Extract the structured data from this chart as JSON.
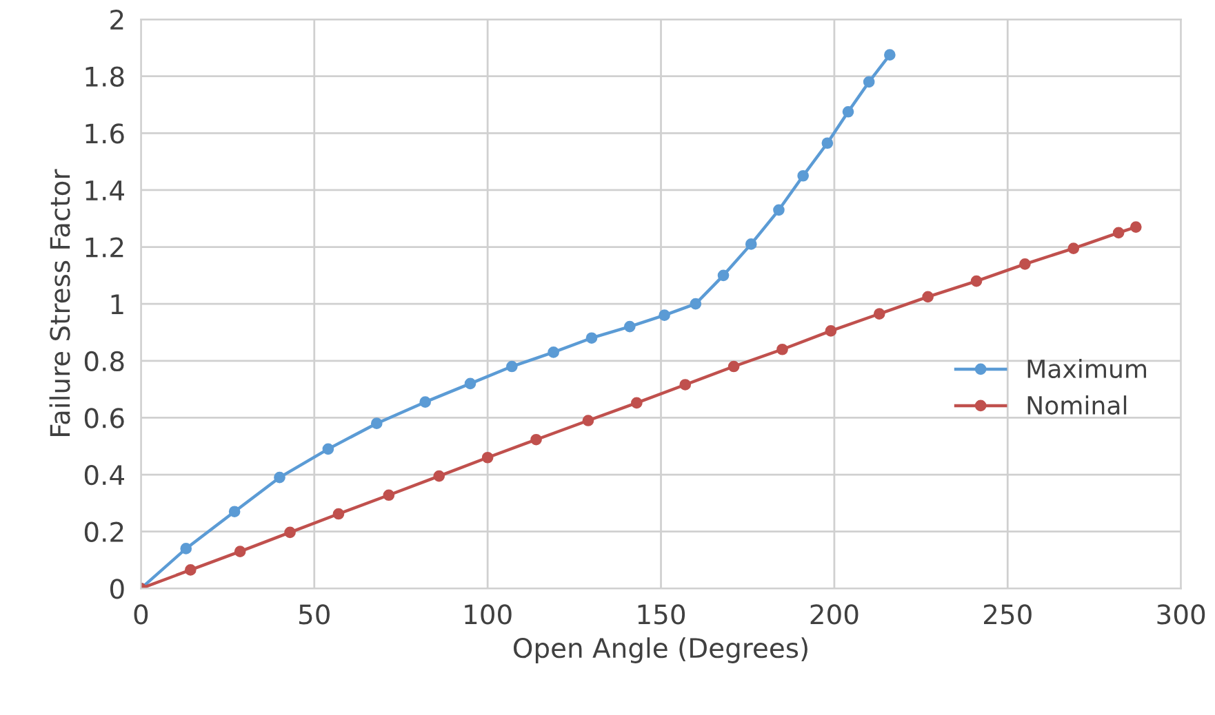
{
  "chart_data": {
    "type": "line",
    "xlabel": "Open Angle (Degrees)",
    "ylabel": "Failure Stress Factor",
    "xlim": [
      0,
      300
    ],
    "xticks": [
      0,
      50,
      100,
      150,
      200,
      250,
      300
    ],
    "ylim": [
      0,
      2
    ],
    "yticks": [
      0,
      0.2,
      0.4,
      0.6,
      0.8,
      1,
      1.2,
      1.4,
      1.6,
      1.8,
      2
    ],
    "grid": true,
    "legend": "right",
    "marker": "circle",
    "line_style": "solid",
    "series": [
      {
        "name": "Maximum",
        "color": "#5b9bd5",
        "x": [
          0,
          13,
          27,
          40,
          54,
          68,
          82,
          95,
          107,
          119,
          130,
          141,
          151,
          160,
          168,
          176,
          184,
          191,
          198,
          204,
          210,
          216
        ],
        "values": [
          0,
          0.14,
          0.27,
          0.39,
          0.49,
          0.58,
          0.655,
          0.72,
          0.78,
          0.83,
          0.88,
          0.92,
          0.96,
          1.0,
          1.1,
          1.21,
          1.33,
          1.45,
          1.565,
          1.675,
          1.78,
          1.875
        ]
      },
      {
        "name": "Nominal",
        "color": "#c0504d",
        "x": [
          0,
          14.3,
          28.6,
          43,
          57,
          71.5,
          86,
          100,
          114,
          129,
          143,
          157,
          171,
          185,
          199,
          213,
          227,
          241,
          255,
          269,
          282,
          287
        ],
        "values": [
          0,
          0.065,
          0.13,
          0.197,
          0.262,
          0.328,
          0.395,
          0.46,
          0.523,
          0.59,
          0.652,
          0.716,
          0.78,
          0.84,
          0.905,
          0.965,
          1.025,
          1.08,
          1.14,
          1.195,
          1.25,
          1.27
        ]
      }
    ]
  }
}
